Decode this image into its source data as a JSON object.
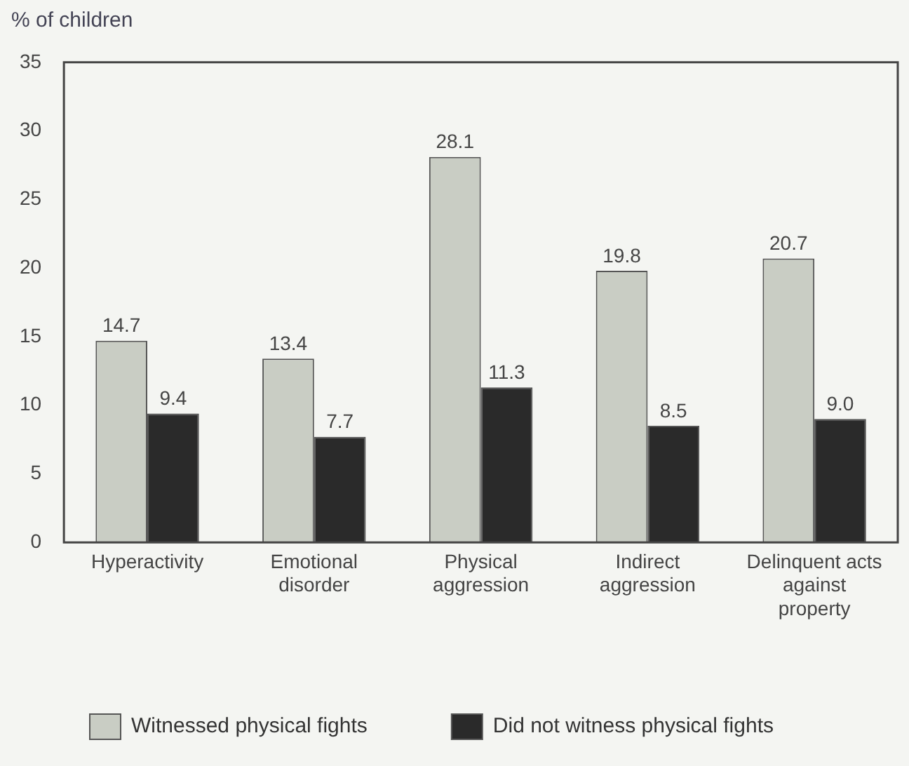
{
  "chart_data": {
    "type": "bar",
    "ylabel": "% of children",
    "categories": [
      "Hyperactivity",
      "Emotional disorder",
      "Physical aggression",
      "Indirect aggression",
      "Delinquent acts against property"
    ],
    "series": [
      {
        "name": "Witnessed physical fights",
        "color": "#c9cdc4",
        "values": [
          14.7,
          13.4,
          28.1,
          19.8,
          20.7
        ],
        "value_labels": [
          "14.7",
          "13.4",
          "28.1",
          "19.8",
          "20.7"
        ]
      },
      {
        "name": "Did not witness physical fights",
        "color": "#2a2a2a",
        "values": [
          9.4,
          7.7,
          11.3,
          8.5,
          9.0
        ],
        "value_labels": [
          "9.4",
          "7.7",
          "11.3",
          "8.5",
          "9.0"
        ]
      }
    ],
    "ylim": [
      0,
      35
    ],
    "yticks": [
      0,
      5,
      10,
      15,
      20,
      25,
      30,
      35
    ],
    "grid": false,
    "legend": "bottom"
  }
}
